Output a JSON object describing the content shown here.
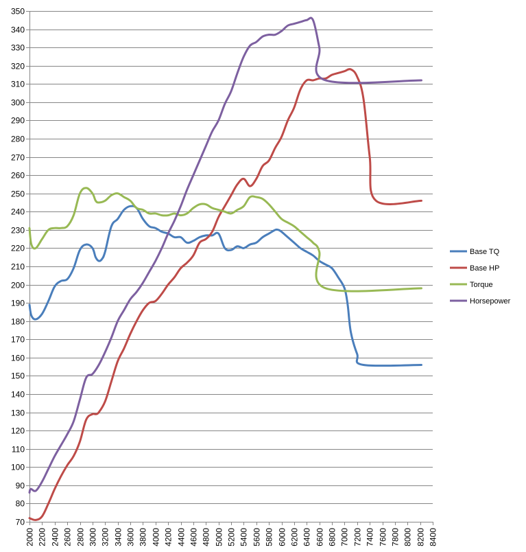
{
  "chart_data": {
    "type": "line",
    "title": "",
    "xlabel": "",
    "ylabel": "",
    "xlim": [
      2000,
      8400
    ],
    "ylim": [
      70,
      350
    ],
    "x_ticks": [
      2000,
      2200,
      2400,
      2600,
      2800,
      3000,
      3200,
      3400,
      3600,
      3800,
      4000,
      4200,
      4400,
      4600,
      4800,
      5000,
      5200,
      5400,
      5600,
      5800,
      6000,
      6200,
      6400,
      6600,
      6800,
      7000,
      7200,
      7400,
      7600,
      7800,
      8000,
      8200,
      8400
    ],
    "y_ticks": [
      70,
      80,
      90,
      100,
      110,
      120,
      130,
      140,
      150,
      160,
      170,
      180,
      190,
      200,
      210,
      220,
      230,
      240,
      250,
      260,
      270,
      280,
      290,
      300,
      310,
      320,
      330,
      340,
      350
    ],
    "grid": "horizontal",
    "legend_position": "right",
    "series": [
      {
        "name": "Base TQ",
        "color": "#4A7EBB",
        "x": [
          2000,
          2030,
          2100,
          2200,
          2300,
          2400,
          2500,
          2600,
          2700,
          2800,
          2900,
          3000,
          3050,
          3100,
          3150,
          3200,
          3300,
          3400,
          3500,
          3600,
          3700,
          3800,
          3900,
          4000,
          4100,
          4200,
          4300,
          4400,
          4500,
          4600,
          4700,
          4800,
          4900,
          5000,
          5100,
          5200,
          5300,
          5400,
          5500,
          5600,
          5700,
          5800,
          5900,
          5950,
          6000,
          6100,
          6200,
          6300,
          6400,
          6500,
          6600,
          6700,
          6800,
          6900,
          7000,
          7050,
          7100,
          7200,
          7300,
          7400,
          7500,
          7600,
          7700,
          7800,
          7900,
          8000,
          8050,
          8100,
          8150,
          8200,
          8220
        ],
        "y": [
          189,
          183,
          181,
          184,
          191,
          199,
          202,
          203,
          209,
          219,
          222,
          220,
          215,
          213,
          214,
          218,
          232,
          236,
          241,
          243,
          242,
          236,
          232,
          231,
          229,
          228,
          226,
          226,
          223,
          224,
          226,
          227,
          227,
          228,
          220,
          219,
          221,
          220,
          222,
          223,
          226,
          228,
          230,
          230,
          229,
          226,
          223,
          220,
          218,
          216,
          213,
          211,
          209,
          204,
          198,
          189,
          174,
          162,
          156,
          156,
          156,
          156,
          156,
          156,
          156,
          156,
          156,
          156,
          156,
          156,
          156
        ]
      },
      {
        "name": "Base HP",
        "color": "#BE4B48",
        "x": [
          2000,
          2100,
          2200,
          2300,
          2400,
          2500,
          2600,
          2700,
          2800,
          2900,
          3000,
          3050,
          3100,
          3200,
          3300,
          3400,
          3500,
          3600,
          3700,
          3800,
          3900,
          4000,
          4100,
          4200,
          4300,
          4400,
          4500,
          4600,
          4700,
          4800,
          4900,
          5000,
          5100,
          5200,
          5300,
          5400,
          5500,
          5600,
          5700,
          5800,
          5900,
          6000,
          6100,
          6200,
          6300,
          6400,
          6500,
          6600,
          6700,
          6800,
          6900,
          7000,
          7100,
          7200,
          7300,
          7400,
          7500,
          7600,
          7700,
          7800,
          7900,
          8000,
          8100,
          8150,
          8200,
          8220
        ],
        "y": [
          72,
          71,
          73,
          80,
          88,
          95,
          101,
          106,
          114,
          126,
          129,
          129,
          130,
          136,
          147,
          158,
          165,
          173,
          180,
          186,
          190,
          191,
          195,
          200,
          204,
          209,
          212,
          216,
          223,
          225,
          229,
          237,
          243,
          249,
          255,
          258,
          254,
          258,
          265,
          268,
          275,
          281,
          290,
          297,
          307,
          312,
          312,
          313,
          313,
          315,
          316,
          317,
          318,
          314,
          302,
          270,
          246,
          246,
          246,
          246,
          246,
          246,
          246,
          246,
          246,
          246
        ]
      },
      {
        "name": "Torque",
        "color": "#98B954",
        "x": [
          2000,
          2030,
          2100,
          2200,
          2300,
          2400,
          2500,
          2600,
          2700,
          2800,
          2900,
          3000,
          3050,
          3100,
          3200,
          3300,
          3400,
          3500,
          3600,
          3700,
          3800,
          3900,
          4000,
          4100,
          4200,
          4300,
          4400,
          4500,
          4600,
          4700,
          4800,
          4900,
          5000,
          5100,
          5200,
          5300,
          5400,
          5500,
          5600,
          5700,
          5800,
          5900,
          6000,
          6100,
          6200,
          6300,
          6400,
          6500,
          6600,
          6700,
          6800,
          6900,
          7000,
          7100,
          7200,
          7300,
          7400,
          7500,
          7600,
          7700,
          7800,
          7900,
          8000,
          8100,
          8150,
          8200,
          8220
        ],
        "y": [
          231,
          222,
          220,
          225,
          230,
          231,
          231,
          232,
          238,
          250,
          253,
          250,
          246,
          245,
          246,
          249,
          250,
          248,
          246,
          242,
          241,
          239,
          239,
          238,
          238,
          239,
          238,
          239,
          242,
          244,
          244,
          242,
          241,
          240,
          239,
          241,
          243,
          248,
          248,
          247,
          244,
          240,
          236,
          234,
          232,
          229,
          226,
          223,
          218,
          198,
          198,
          198,
          198,
          198,
          198,
          198,
          198,
          198,
          198,
          198,
          198,
          198,
          198,
          198,
          198,
          198,
          198
        ]
      },
      {
        "name": "Horsepower",
        "color": "#7D60A0",
        "x": [
          2000,
          2020,
          2100,
          2200,
          2300,
          2400,
          2500,
          2600,
          2700,
          2800,
          2900,
          3000,
          3100,
          3200,
          3300,
          3400,
          3500,
          3600,
          3700,
          3800,
          3900,
          4000,
          4100,
          4200,
          4300,
          4400,
          4500,
          4600,
          4700,
          4800,
          4900,
          5000,
          5100,
          5200,
          5300,
          5400,
          5500,
          5600,
          5700,
          5800,
          5900,
          6000,
          6100,
          6200,
          6300,
          6400,
          6500,
          6600,
          6700,
          6800,
          6900,
          7000,
          7100,
          7200,
          7300,
          7400,
          7500,
          7600,
          7700,
          7800,
          7900,
          8000,
          8050,
          8100,
          8150,
          8200,
          8220
        ],
        "y": [
          86,
          88,
          87,
          92,
          99,
          106,
          112,
          118,
          125,
          137,
          149,
          151,
          156,
          163,
          171,
          180,
          186,
          192,
          196,
          201,
          207,
          213,
          220,
          228,
          235,
          243,
          252,
          260,
          268,
          276,
          284,
          290,
          299,
          306,
          316,
          325,
          331,
          333,
          336,
          337,
          337,
          339,
          342,
          343,
          344,
          345,
          345,
          330,
          312,
          312,
          312,
          312,
          312,
          312,
          312,
          312,
          312,
          312,
          312,
          312,
          312,
          312,
          312,
          312,
          312,
          312,
          312
        ]
      }
    ]
  }
}
